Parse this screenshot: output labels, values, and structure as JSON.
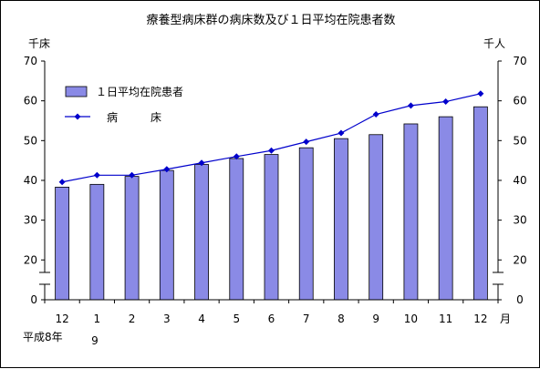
{
  "chart_data": {
    "type": "bar",
    "title": "療養型病床群の病床数及び１日平均在院患者数",
    "left_unit": "千床",
    "right_unit": "千人",
    "month_unit": "月",
    "era_label": "平成8年",
    "year_marker": "9",
    "categories": [
      "12",
      "1",
      "2",
      "3",
      "4",
      "5",
      "6",
      "7",
      "8",
      "9",
      "10",
      "11",
      "12"
    ],
    "yticks": [
      "0",
      "20",
      "30",
      "40",
      "50",
      "60",
      "70"
    ],
    "ylim": [
      0,
      70
    ],
    "axis_break": true,
    "legend_position": "top-left",
    "series": [
      {
        "name": "１日平均在院患者",
        "kind": "bar",
        "color": "#8a8ae6",
        "values": [
          38.3,
          39.0,
          41.0,
          42.5,
          44.0,
          45.5,
          46.5,
          48.2,
          50.5,
          51.5,
          54.2,
          56.0,
          58.5
        ]
      },
      {
        "name": "病　　　床",
        "kind": "line",
        "color": "#0000cc",
        "values": [
          39.6,
          41.3,
          41.3,
          42.8,
          44.4,
          46.0,
          47.5,
          49.7,
          51.9,
          56.6,
          58.8,
          59.8,
          61.8
        ]
      }
    ]
  }
}
